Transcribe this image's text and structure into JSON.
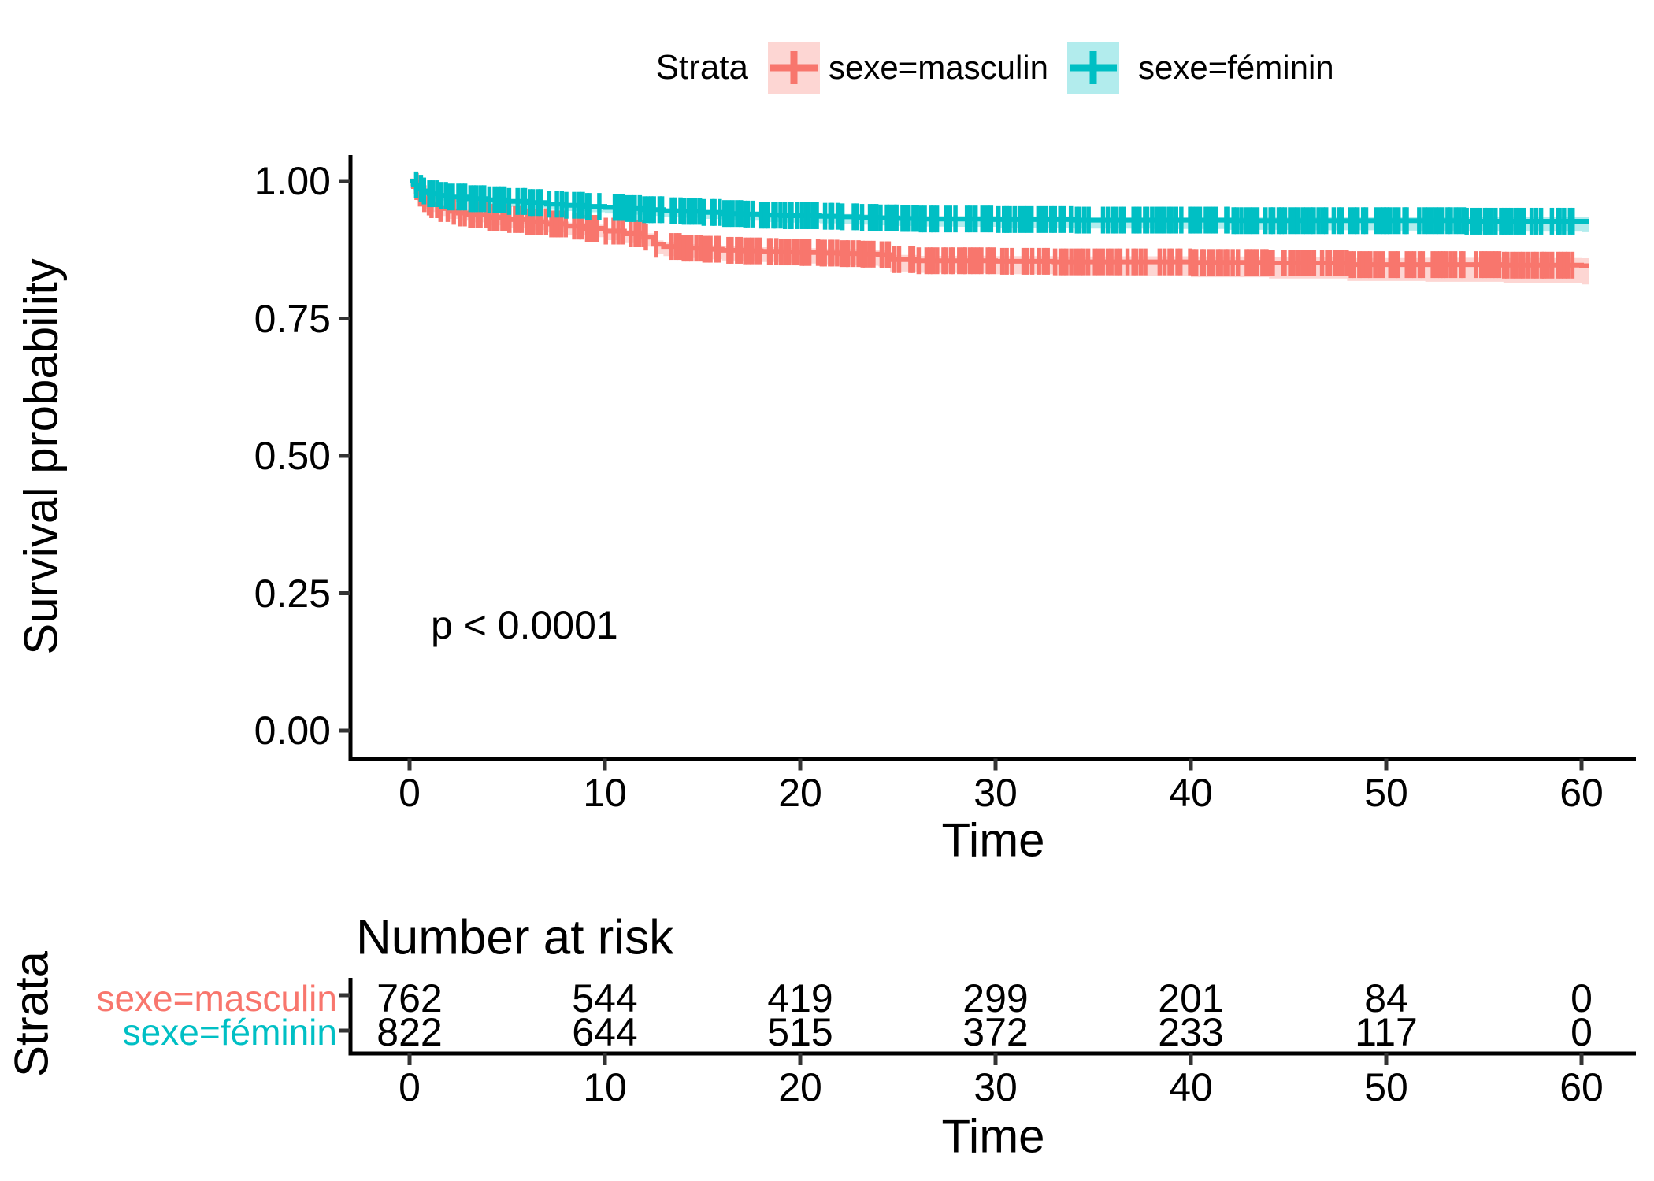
{
  "figure": {
    "legend": {
      "title": "Strata",
      "items": [
        {
          "label": "sexe=masculin",
          "color": "#F8766D",
          "fill": "rgba(248,118,109,0.3)"
        },
        {
          "label": "sexe=féminin",
          "color": "#00BFC4",
          "fill": "rgba(0,191,196,0.3)"
        }
      ]
    },
    "y_axis": {
      "title": "Survival probability",
      "tick_labels": [
        "1.00",
        "0.75",
        "0.50",
        "0.25",
        "0.00"
      ],
      "tick_values": [
        1.0,
        0.75,
        0.5,
        0.25,
        0.0
      ]
    },
    "x_axis": {
      "title": "Time",
      "tick_labels": [
        "0",
        "10",
        "20",
        "30",
        "40",
        "50",
        "60"
      ],
      "tick_values": [
        0,
        10,
        20,
        30,
        40,
        50,
        60
      ]
    },
    "annotation": {
      "p_value": "p < 0.0001"
    },
    "risk_table": {
      "title": "Number at risk",
      "axis_title": "Strata",
      "x_axis_title": "Time",
      "time_tick_labels": [
        "0",
        "10",
        "20",
        "30",
        "40",
        "50",
        "60"
      ],
      "rows": [
        {
          "label": "sexe=masculin",
          "color": "#F8766D",
          "counts": [
            "762",
            "544",
            "419",
            "299",
            "201",
            "84",
            "0"
          ]
        },
        {
          "label": "sexe=féminin",
          "color": "#00BFC4",
          "counts": [
            "822",
            "644",
            "515",
            "372",
            "233",
            "117",
            "0"
          ]
        }
      ]
    }
  },
  "chart_data": {
    "type": "line",
    "subtype": "kaplan-meier-step",
    "title": "",
    "xlabel": "Time",
    "ylabel": "Survival probability",
    "xlim": [
      0,
      60
    ],
    "ylim": [
      0,
      1
    ],
    "grid": false,
    "legend_position": "top",
    "p_value_annotation": "p < 0.0001",
    "series": [
      {
        "name": "sexe=masculin",
        "color": "#F8766D",
        "ci_fill": "rgba(248,118,109,0.3)",
        "ci_halfwidth_start": 0.013,
        "ci_halfwidth_end": 0.034,
        "censor_marks_dense": true,
        "steps": [
          [
            0,
            1.0
          ],
          [
            0.2,
            0.99
          ],
          [
            0.4,
            0.978
          ],
          [
            0.6,
            0.968
          ],
          [
            0.8,
            0.962
          ],
          [
            1,
            0.957
          ],
          [
            1.5,
            0.95
          ],
          [
            2,
            0.945
          ],
          [
            2.5,
            0.942
          ],
          [
            3,
            0.939
          ],
          [
            4,
            0.934
          ],
          [
            5,
            0.93
          ],
          [
            6,
            0.926
          ],
          [
            7,
            0.922
          ],
          [
            8,
            0.918
          ],
          [
            9,
            0.914
          ],
          [
            10,
            0.909
          ],
          [
            11,
            0.904
          ],
          [
            12,
            0.898
          ],
          [
            12.5,
            0.885
          ],
          [
            13,
            0.881
          ],
          [
            14,
            0.878
          ],
          [
            15,
            0.876
          ],
          [
            16,
            0.874
          ],
          [
            17,
            0.873
          ],
          [
            18,
            0.872
          ],
          [
            19,
            0.871
          ],
          [
            20,
            0.87
          ],
          [
            21,
            0.869
          ],
          [
            22,
            0.868
          ],
          [
            23,
            0.867
          ],
          [
            24,
            0.866
          ],
          [
            24.6,
            0.857
          ],
          [
            26,
            0.855
          ],
          [
            28,
            0.855
          ],
          [
            30,
            0.854
          ],
          [
            33,
            0.853
          ],
          [
            36,
            0.853
          ],
          [
            40,
            0.852
          ],
          [
            44,
            0.851
          ],
          [
            48,
            0.848
          ],
          [
            52,
            0.848
          ],
          [
            56,
            0.847
          ],
          [
            60,
            0.846
          ]
        ]
      },
      {
        "name": "sexe=féminin",
        "color": "#00BFC4",
        "ci_fill": "rgba(0,191,196,0.3)",
        "ci_halfwidth_start": 0.009,
        "ci_halfwidth_end": 0.02,
        "censor_marks_dense": true,
        "steps": [
          [
            0,
            1.0
          ],
          [
            0.2,
            0.993
          ],
          [
            0.4,
            0.987
          ],
          [
            0.6,
            0.982
          ],
          [
            0.8,
            0.979
          ],
          [
            1,
            0.977
          ],
          [
            1.5,
            0.974
          ],
          [
            2,
            0.971
          ],
          [
            3,
            0.968
          ],
          [
            4,
            0.966
          ],
          [
            5,
            0.963
          ],
          [
            6,
            0.961
          ],
          [
            7,
            0.958
          ],
          [
            8,
            0.956
          ],
          [
            9,
            0.954
          ],
          [
            10,
            0.952
          ],
          [
            11,
            0.95
          ],
          [
            12,
            0.948
          ],
          [
            13,
            0.946
          ],
          [
            14,
            0.945
          ],
          [
            15,
            0.943
          ],
          [
            16,
            0.941
          ],
          [
            17,
            0.94
          ],
          [
            18,
            0.938
          ],
          [
            19,
            0.937
          ],
          [
            20,
            0.937
          ],
          [
            21,
            0.936
          ],
          [
            22,
            0.935
          ],
          [
            23,
            0.934
          ],
          [
            24,
            0.933
          ],
          [
            25,
            0.932
          ],
          [
            26,
            0.931
          ],
          [
            28,
            0.931
          ],
          [
            30,
            0.93
          ],
          [
            34,
            0.929
          ],
          [
            38,
            0.929
          ],
          [
            42,
            0.928
          ],
          [
            46,
            0.928
          ],
          [
            50,
            0.928
          ],
          [
            54,
            0.927
          ],
          [
            60,
            0.927
          ]
        ]
      }
    ],
    "number_at_risk": {
      "times": [
        0,
        10,
        20,
        30,
        40,
        50,
        60
      ],
      "sexe=masculin": [
        762,
        544,
        419,
        299,
        201,
        84,
        0
      ],
      "sexe=féminin": [
        822,
        644,
        515,
        372,
        233,
        117,
        0
      ]
    }
  }
}
